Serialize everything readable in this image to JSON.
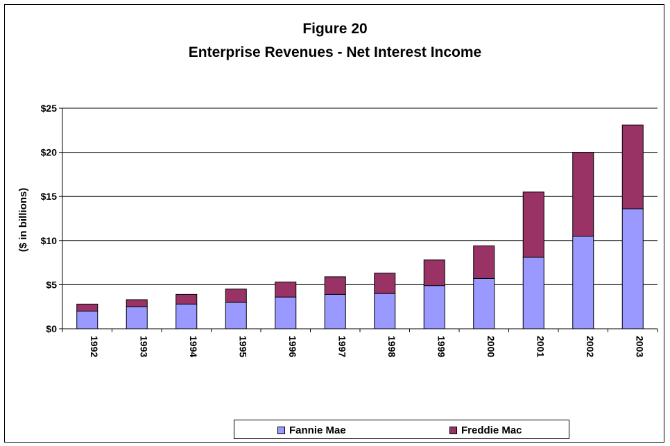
{
  "chart_data": {
    "type": "bar",
    "stacked": true,
    "title": "Figure 20",
    "subtitle": "Enterprise Revenues -  Net Interest Income",
    "xlabel": "",
    "ylabel": "($ in billions)",
    "ylim": [
      0,
      25
    ],
    "yticks": [
      0,
      5,
      10,
      15,
      20,
      25
    ],
    "ytick_labels": [
      "$0",
      "$5",
      "$10",
      "$15",
      "$20",
      "$25"
    ],
    "grid": true,
    "legend_position": "bottom",
    "categories": [
      "1992",
      "1993",
      "1994",
      "1995",
      "1996",
      "1997",
      "1998",
      "1999",
      "2000",
      "2001",
      "2002",
      "2003"
    ],
    "series": [
      {
        "name": "Fannie Mae",
        "color": "#9999ff",
        "values": [
          2.0,
          2.5,
          2.8,
          3.0,
          3.6,
          3.9,
          4.0,
          4.9,
          5.7,
          8.1,
          10.5,
          13.6
        ]
      },
      {
        "name": "Freddie Mac",
        "color": "#993366",
        "values": [
          0.8,
          0.8,
          1.1,
          1.5,
          1.7,
          2.0,
          2.3,
          2.9,
          3.7,
          7.4,
          9.5,
          9.5
        ]
      }
    ]
  }
}
